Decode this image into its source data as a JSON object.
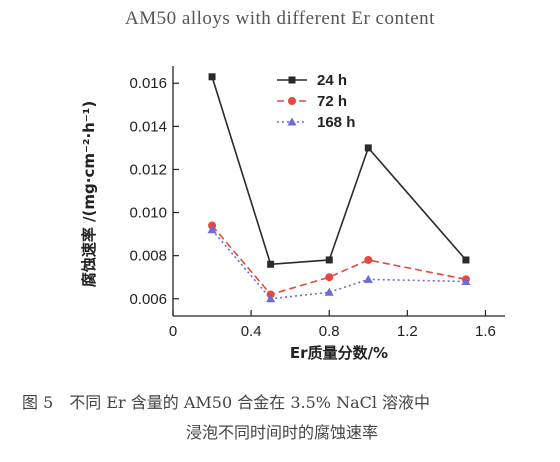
{
  "top_caption": "AM50 alloys with different Er content",
  "figure": {
    "number": "图 5",
    "caption_line1": "不同 Er 含量的 AM50 合金在 3.5% NaCl 溶液中",
    "caption_line2": "浸泡不同时间时的腐蚀速率"
  },
  "chart_data": {
    "type": "line",
    "title": "",
    "xlabel": "Er质量分数/%",
    "ylabel": "腐蚀速率 /(mg·cm⁻²·h⁻¹)",
    "xlim": [
      0,
      1.7
    ],
    "ylim": [
      0.0052,
      0.0168
    ],
    "x_ticks": [
      0,
      0.4,
      0.8,
      1.2,
      1.6
    ],
    "x_tick_labels": [
      "0",
      "0.4",
      "0.8",
      "1.2",
      "1.6"
    ],
    "y_ticks": [
      0.006,
      0.008,
      0.01,
      0.012,
      0.014,
      0.016
    ],
    "y_tick_labels": [
      "0.006",
      "0.008",
      "0.010",
      "0.012",
      "0.014",
      "0.016"
    ],
    "grid": false,
    "legend_position": "top-center",
    "x": [
      0.2,
      0.5,
      0.8,
      1.0,
      1.5
    ],
    "series": [
      {
        "name": "24 h",
        "values": [
          0.0163,
          0.0076,
          0.0078,
          0.013,
          0.0078
        ],
        "color": "#2a2a2a",
        "marker": "square",
        "dash": "solid"
      },
      {
        "name": "72 h",
        "values": [
          0.0094,
          0.0062,
          0.007,
          0.0078,
          0.0069
        ],
        "color": "#e8463f",
        "marker": "circle",
        "dash": "dashed"
      },
      {
        "name": "168 h",
        "values": [
          0.0092,
          0.006,
          0.0063,
          0.0069,
          0.0068
        ],
        "color": "#6a6ad8",
        "marker": "triangle",
        "dash": "dotted"
      }
    ]
  }
}
